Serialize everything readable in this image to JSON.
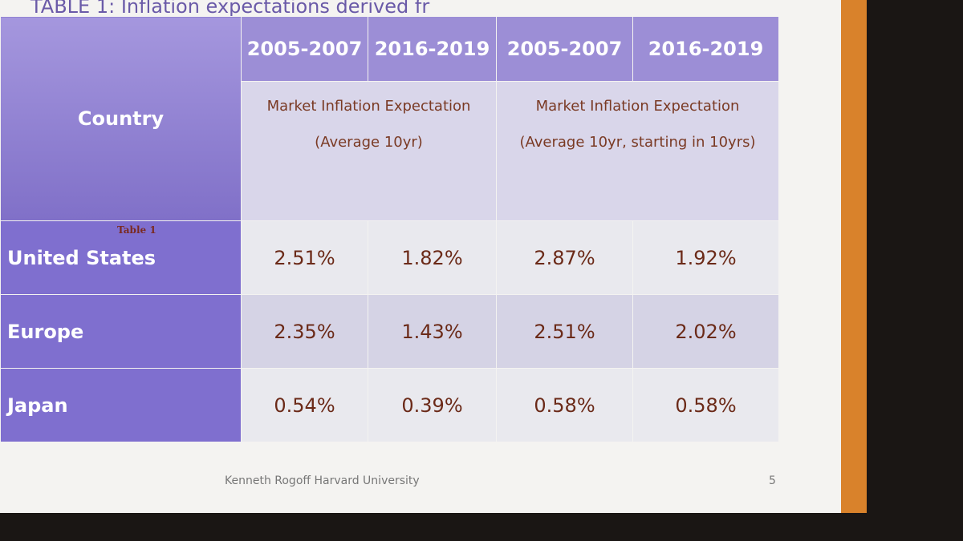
{
  "title": "TABLE 1: Inflation expectations derived fr",
  "table": {
    "country_header": "Country",
    "periods": [
      "2005-2007",
      "2016-2019",
      "2005-2007",
      "2016-2019"
    ],
    "groups": [
      {
        "label": "Market Inflation Expectation",
        "sub": "(Average 10yr)"
      },
      {
        "label": "Market Inflation Expectation",
        "sub": "(Average 10yr, starting in 10yrs)"
      }
    ],
    "note": "Table 1",
    "rows": [
      [
        "United States",
        "2.51%",
        "1.82%",
        "2.87%",
        "1.92%"
      ],
      [
        "Europe",
        "2.35%",
        "1.43%",
        "2.51%",
        "2.02%"
      ],
      [
        "Japan",
        "0.54%",
        "0.39%",
        "0.58%",
        "0.58%"
      ]
    ]
  },
  "footer": {
    "author": "Kenneth Rogoff Harvard University",
    "page": "5"
  }
}
